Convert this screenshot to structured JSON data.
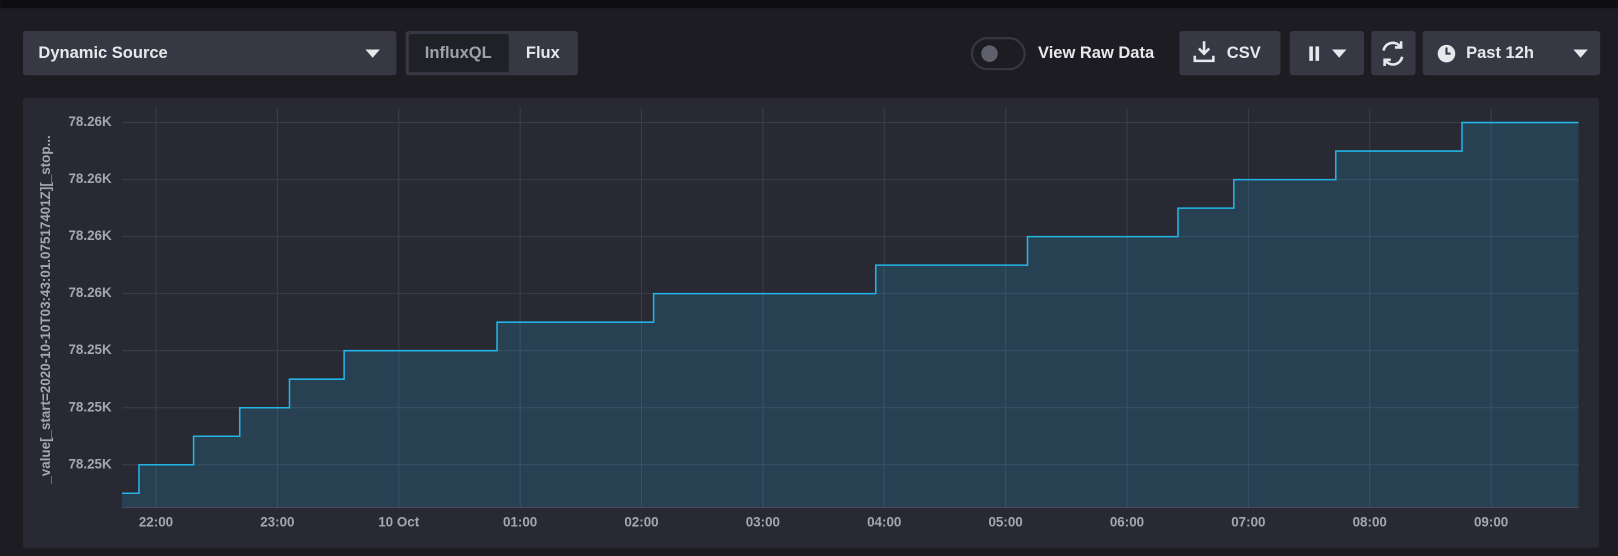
{
  "controls": {
    "source": "Dynamic Source",
    "mode_a": "InfluxQL",
    "mode_b": "Flux",
    "raw_toggle": "View Raw Data",
    "csv": "CSV",
    "time_range": "Past 12h"
  },
  "chart_data": {
    "type": "step-area",
    "y_label": "_value[_start=2020-10-10T03:43:01.07517401Z][_stop...",
    "x": [
      21.72,
      21.86,
      22.31,
      22.69,
      23.1,
      23.55,
      24.81,
      26.1,
      27.93,
      29.18,
      30.42,
      30.88,
      31.72,
      32.76,
      33.72
    ],
    "series": [
      {
        "color": "#22b4e6",
        "values": [
          78248,
          78249,
          78250,
          78251,
          78252,
          78253,
          78254,
          78255,
          78256,
          78257,
          78258,
          78259,
          78260,
          78261,
          78261
        ]
      }
    ],
    "xlim": [
      21.72,
      33.72
    ],
    "xticks": [
      {
        "value": 22,
        "label": "22:00"
      },
      {
        "value": 23,
        "label": "23:00"
      },
      {
        "value": 24,
        "label": "10 Oct"
      },
      {
        "value": 25,
        "label": "01:00"
      },
      {
        "value": 26,
        "label": "02:00"
      },
      {
        "value": 27,
        "label": "03:00"
      },
      {
        "value": 28,
        "label": "04:00"
      },
      {
        "value": 29,
        "label": "05:00"
      },
      {
        "value": 30,
        "label": "06:00"
      },
      {
        "value": 31,
        "label": "07:00"
      },
      {
        "value": 32,
        "label": "08:00"
      },
      {
        "value": 33,
        "label": "09:00"
      }
    ],
    "ylim": [
      78247.5,
      78261.5
    ],
    "yticks": [
      {
        "value": 78249,
        "label": "78.25K"
      },
      {
        "value": 78251,
        "label": "78.25K"
      },
      {
        "value": 78253,
        "label": "78.25K"
      },
      {
        "value": 78255,
        "label": "78.26K"
      },
      {
        "value": 78257,
        "label": "78.26K"
      },
      {
        "value": 78259,
        "label": "78.26K"
      },
      {
        "value": 78261,
        "label": "78.26K"
      }
    ],
    "grid": true
  }
}
